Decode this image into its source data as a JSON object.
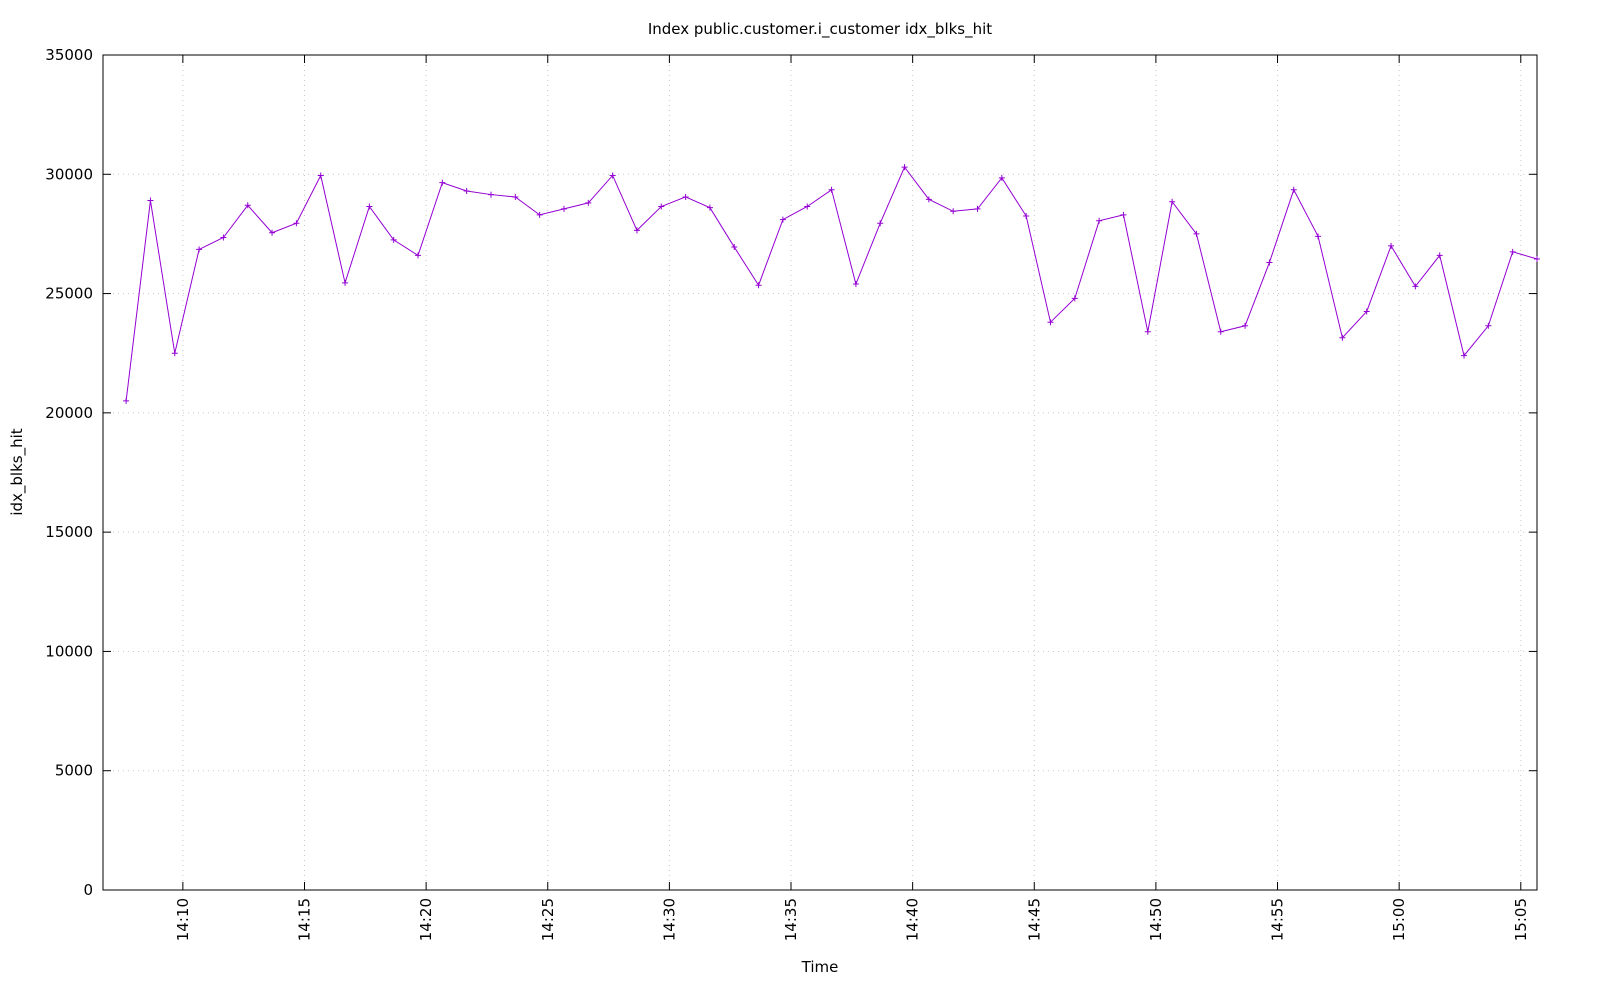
{
  "chart_data": {
    "type": "line",
    "title": "Index public.customer.i_customer idx_blks_hit",
    "x_label": "Time",
    "y_label": "idx_blks_hit",
    "x": [
      "14:07:40",
      "14:08:40",
      "14:09:40",
      "14:10:40",
      "14:11:40",
      "14:12:40",
      "14:13:40",
      "14:14:40",
      "14:15:40",
      "14:16:40",
      "14:17:40",
      "14:18:40",
      "14:19:40",
      "14:20:40",
      "14:21:40",
      "14:22:40",
      "14:23:40",
      "14:24:40",
      "14:25:40",
      "14:26:40",
      "14:27:40",
      "14:28:40",
      "14:29:40",
      "14:30:40",
      "14:31:40",
      "14:32:40",
      "14:33:40",
      "14:34:40",
      "14:35:40",
      "14:36:40",
      "14:37:40",
      "14:38:40",
      "14:39:40",
      "14:40:40",
      "14:41:40",
      "14:42:40",
      "14:43:40",
      "14:44:40",
      "14:45:40",
      "14:46:40",
      "14:47:40",
      "14:48:40",
      "14:49:40",
      "14:50:40",
      "14:51:40",
      "14:52:40",
      "14:53:40",
      "14:54:40",
      "14:55:40",
      "14:56:40",
      "14:57:40",
      "14:58:40",
      "14:59:40",
      "15:00:40",
      "15:01:40",
      "15:02:40",
      "15:03:40",
      "15:04:40",
      "15:05:40"
    ],
    "series": [
      {
        "name": "idx_blks_hit",
        "color": "#9400d3",
        "values": [
          20500,
          28900,
          22500,
          26850,
          27350,
          28700,
          27550,
          27950,
          29950,
          25450,
          28650,
          27250,
          26600,
          29650,
          29300,
          29150,
          29050,
          28300,
          28550,
          28800,
          29950,
          27650,
          28650,
          29050,
          28600,
          26950,
          25350,
          28100,
          28650,
          29350,
          25400,
          27950,
          30300,
          28950,
          28450,
          28550,
          29850,
          28250,
          23800,
          24800,
          28050,
          28300,
          23400,
          28850,
          27500,
          23400,
          23650,
          26300,
          29350,
          27400,
          23150,
          24250,
          27000,
          25300,
          26600,
          22400,
          23650,
          26750,
          26450
        ]
      }
    ],
    "xlim": [
      "14:06:43",
      "15:05:40"
    ],
    "xticks": [
      "14:10",
      "14:15",
      "14:20",
      "14:25",
      "14:30",
      "14:35",
      "14:40",
      "14:45",
      "14:50",
      "14:55",
      "15:00",
      "15:05"
    ],
    "ylim": [
      0,
      35000
    ],
    "yticks": [
      0,
      5000,
      10000,
      15000,
      20000,
      25000,
      30000,
      35000
    ],
    "grid": true
  }
}
